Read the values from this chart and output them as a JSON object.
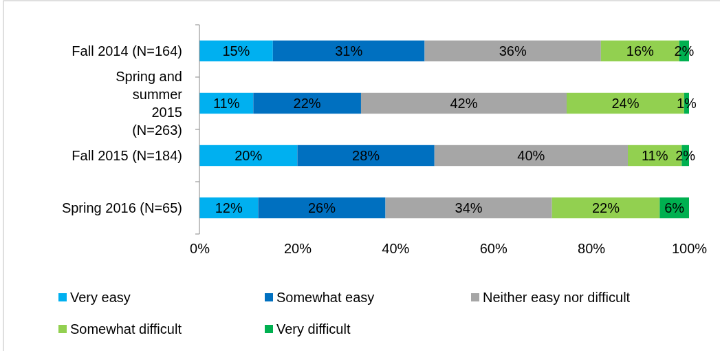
{
  "chart_data": {
    "type": "bar",
    "orientation": "horizontal",
    "stacked": true,
    "legend": "bottom",
    "grid": false,
    "categories": [
      "Fall 2014 (N=164)",
      "Spring and summer 2015 (N=263)",
      "Fall 2015 (N=184)",
      "Spring 2016 (N=65)"
    ],
    "xlim": [
      0,
      100
    ],
    "xticks": [
      {
        "value": 0,
        "label": "0%"
      },
      {
        "value": 20,
        "label": "20%"
      },
      {
        "value": 40,
        "label": "40%"
      },
      {
        "value": 60,
        "label": "60%"
      },
      {
        "value": 80,
        "label": "80%"
      },
      {
        "value": 100,
        "label": "100%"
      }
    ],
    "series": [
      {
        "name": "Very easy",
        "color": "#00b0f0",
        "values": [
          15,
          11,
          20,
          12
        ],
        "value_labels": [
          "15%",
          "11%",
          "20%",
          "12%"
        ]
      },
      {
        "name": "Somewhat easy",
        "color": "#0070c0",
        "values": [
          31,
          22,
          28,
          26
        ],
        "value_labels": [
          "31%",
          "22%",
          "28%",
          "26%"
        ]
      },
      {
        "name": "Neither easy nor difficult",
        "color": "#a6a6a6",
        "values": [
          36,
          42,
          39.5,
          34
        ],
        "value_labels": [
          "36%",
          "42%",
          "40%",
          "34%"
        ]
      },
      {
        "name": "Somewhat difficult",
        "color": "#92d050",
        "values": [
          16,
          24,
          11,
          22
        ],
        "value_labels": [
          "16%",
          "24%",
          "11%",
          "22%"
        ]
      },
      {
        "name": "Very difficult",
        "color": "#00b050",
        "values": [
          2,
          1,
          1.5,
          6
        ],
        "value_labels": [
          "2%",
          "1%",
          "2%",
          "6%"
        ]
      }
    ]
  }
}
